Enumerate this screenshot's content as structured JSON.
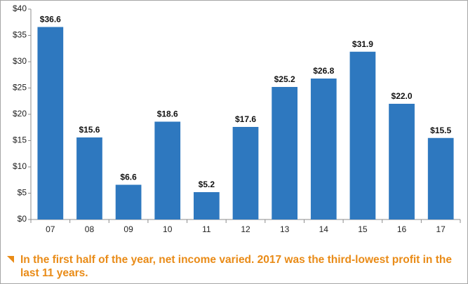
{
  "chart_data": {
    "type": "bar",
    "categories": [
      "07",
      "08",
      "09",
      "10",
      "11",
      "12",
      "13",
      "14",
      "15",
      "16",
      "17"
    ],
    "values": [
      36.6,
      15.6,
      6.6,
      18.6,
      5.2,
      17.6,
      25.2,
      26.8,
      31.9,
      22.0,
      15.5
    ],
    "value_labels": [
      "$36.6",
      "$15.6",
      "$6.6",
      "$18.6",
      "$5.2",
      "$17.6",
      "$25.2",
      "$26.8",
      "$31.9",
      "$22.0",
      "$15.5"
    ],
    "color": "#2e78bf",
    "ylim": [
      0,
      40
    ],
    "yticks": [
      {
        "value": 0,
        "label": "$0"
      },
      {
        "value": 5,
        "label": "$5"
      },
      {
        "value": 10,
        "label": "$10"
      },
      {
        "value": 15,
        "label": "$15"
      },
      {
        "value": 20,
        "label": "$20"
      },
      {
        "value": 25,
        "label": "$25"
      },
      {
        "value": 30,
        "label": "$30"
      },
      {
        "value": 35,
        "label": "$35"
      },
      {
        "value": 40,
        "label": "$40"
      }
    ],
    "grid": false,
    "annotation": "In the first half of the year, net income varied. 2017 was the third-lowest profit in the last 11 years."
  }
}
